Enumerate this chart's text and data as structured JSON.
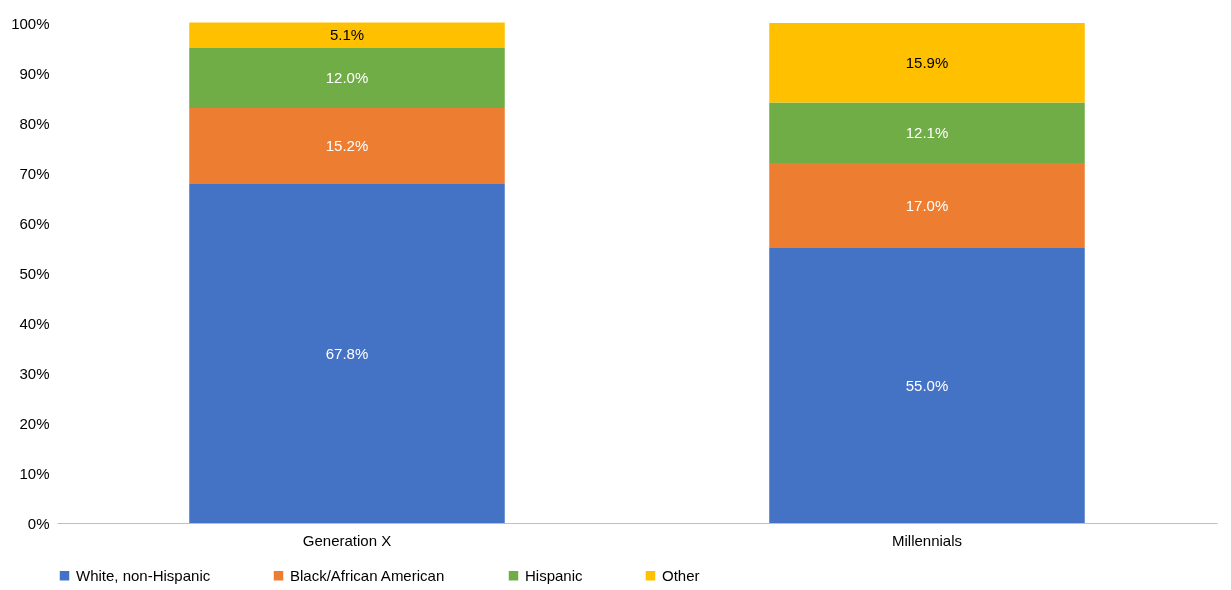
{
  "chart_data": {
    "type": "bar",
    "stacked": true,
    "categories": [
      "Generation X",
      "Millennials"
    ],
    "series": [
      {
        "name": "White, non-Hispanic",
        "color": "#4472c4",
        "values": [
          67.8,
          55.0
        ]
      },
      {
        "name": "Black/African American",
        "color": "#ed7d31",
        "values": [
          15.2,
          17.0
        ]
      },
      {
        "name": "Hispanic",
        "color": "#70ad47",
        "values": [
          12.0,
          12.1
        ]
      },
      {
        "name": "Other",
        "color": "#ffc000",
        "values": [
          5.1,
          15.9
        ]
      }
    ],
    "value_labels": [
      [
        "67.8%",
        "55.0%"
      ],
      [
        "15.2%",
        "17.0%"
      ],
      [
        "12.0%",
        "12.1%"
      ],
      [
        "5.1%",
        "15.9%"
      ]
    ],
    "ylim": [
      0,
      100
    ],
    "yticks": [
      {
        "value": 0,
        "label": "0%"
      },
      {
        "value": 10,
        "label": "10%"
      },
      {
        "value": 20,
        "label": "20%"
      },
      {
        "value": 30,
        "label": "30%"
      },
      {
        "value": 40,
        "label": "40%"
      },
      {
        "value": 50,
        "label": "50%"
      },
      {
        "value": 60,
        "label": "60%"
      },
      {
        "value": 70,
        "label": "70%"
      },
      {
        "value": 80,
        "label": "80%"
      },
      {
        "value": 90,
        "label": "90%"
      },
      {
        "value": 100,
        "label": "100%"
      }
    ],
    "grid": false,
    "legend": "bottom"
  }
}
